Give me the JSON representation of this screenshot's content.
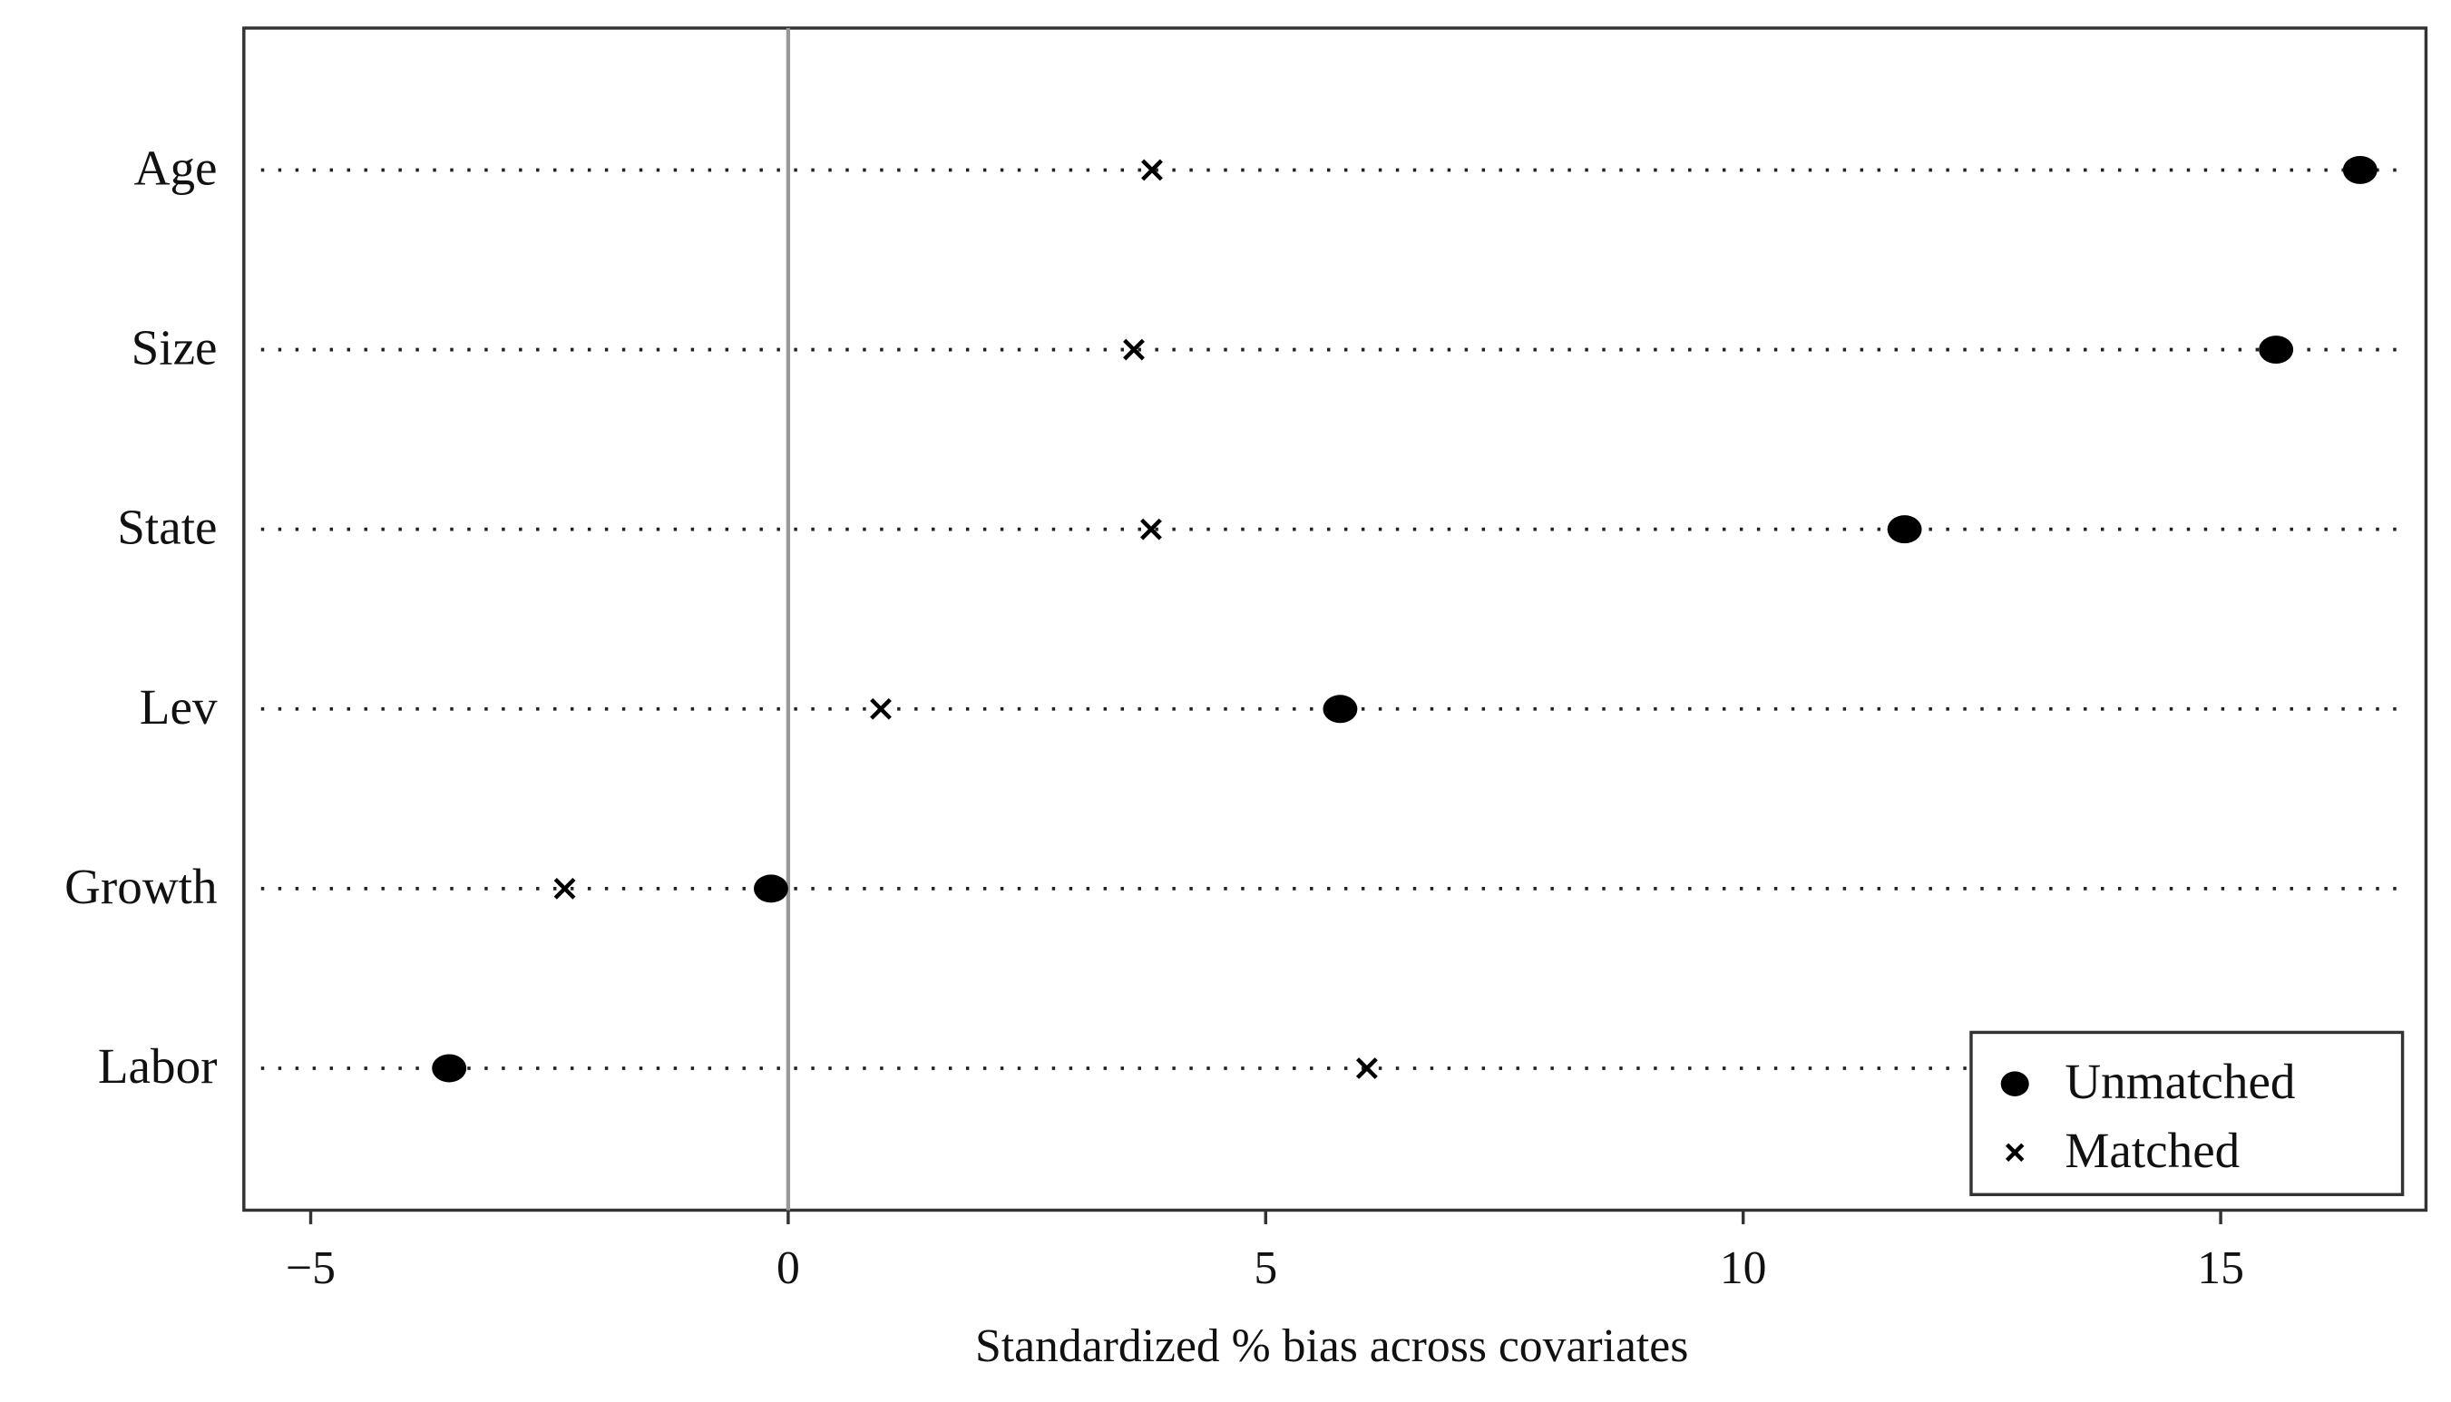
{
  "chart_data": {
    "type": "dot",
    "x_label": "Standardized % bias across covariates",
    "categories": [
      "Age",
      "Size",
      "State",
      "Lev",
      "Growth",
      "Labor"
    ],
    "series": [
      {
        "name": "Unmatched",
        "color": "#000000",
        "marker": "circle",
        "values": [
          16.46,
          15.58,
          11.69,
          5.78,
          -0.18,
          -3.55
        ]
      },
      {
        "name": "Matched",
        "color": "#000000",
        "marker": "x",
        "values": [
          3.81,
          3.62,
          3.8,
          0.97,
          -2.34,
          6.06
        ]
      }
    ],
    "xlim": [
      -5.7,
      17.15
    ],
    "xticks": [
      {
        "value": -5,
        "label": "−5"
      },
      0,
      5,
      10,
      15
    ],
    "xline": 0,
    "legend": "bottom-right",
    "grid": false
  }
}
